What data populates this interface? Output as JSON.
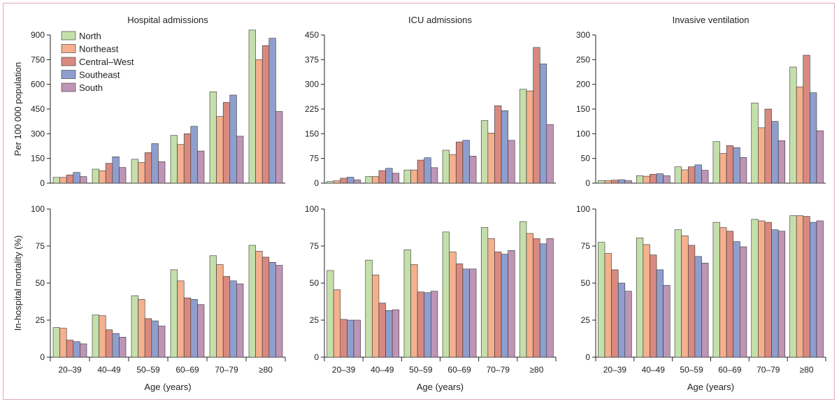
{
  "colors": {
    "North": "#c5dfaa",
    "Northeast": "#f5b08e",
    "Central-West": "#d98a80",
    "Southeast": "#8e9fcf",
    "South": "#bf95b6",
    "border": "#e2a6c4"
  },
  "legend": {
    "items": [
      "North",
      "Northeast",
      "Central–West",
      "Southeast",
      "South"
    ],
    "placement": "top-left"
  },
  "shared": {
    "xlabel": "Age (years)",
    "categories": [
      "20–39",
      "40–49",
      "50–59",
      "60–69",
      "70–79",
      "≥80"
    ]
  },
  "chart_data": [
    {
      "id": "hosp",
      "type": "bar",
      "title": "Hospital admissions",
      "ylabel": "Per 100 000 population",
      "ylim": [
        0,
        900
      ],
      "yticks": [
        0,
        150,
        300,
        450,
        600,
        750,
        900
      ],
      "series": [
        {
          "name": "North",
          "values": [
            35,
            85,
            145,
            290,
            555,
            930
          ]
        },
        {
          "name": "Northeast",
          "values": [
            35,
            75,
            125,
            235,
            405,
            750
          ]
        },
        {
          "name": "Central–West",
          "values": [
            50,
            120,
            185,
            300,
            490,
            835
          ]
        },
        {
          "name": "Southeast",
          "values": [
            65,
            160,
            240,
            345,
            535,
            880
          ]
        },
        {
          "name": "South",
          "values": [
            40,
            95,
            130,
            195,
            285,
            435
          ]
        }
      ]
    },
    {
      "id": "icu",
      "type": "bar",
      "title": "ICU admissions",
      "ylabel": "",
      "ylim": [
        0,
        450
      ],
      "yticks": [
        0,
        75,
        150,
        225,
        300,
        375,
        450
      ],
      "series": [
        {
          "name": "North",
          "values": [
            5,
            20,
            40,
            100,
            190,
            285
          ]
        },
        {
          "name": "Northeast",
          "values": [
            7,
            20,
            40,
            87,
            152,
            280
          ]
        },
        {
          "name": "Central–West",
          "values": [
            15,
            38,
            70,
            125,
            235,
            412
          ]
        },
        {
          "name": "Southeast",
          "values": [
            18,
            45,
            77,
            130,
            220,
            362
          ]
        },
        {
          "name": "South",
          "values": [
            10,
            30,
            47,
            82,
            130,
            178
          ]
        }
      ]
    },
    {
      "id": "vent",
      "type": "bar",
      "title": "Invasive ventilation",
      "ylabel": "",
      "ylim": [
        0,
        300
      ],
      "yticks": [
        0,
        50,
        100,
        150,
        200,
        250,
        300
      ],
      "series": [
        {
          "name": "North",
          "values": [
            5,
            15,
            33,
            84,
            162,
            235
          ]
        },
        {
          "name": "Northeast",
          "values": [
            5,
            14,
            27,
            60,
            112,
            195
          ]
        },
        {
          "name": "Central–West",
          "values": [
            6,
            18,
            33,
            76,
            150,
            259
          ]
        },
        {
          "name": "Southeast",
          "values": [
            7,
            19,
            37,
            72,
            125,
            183
          ]
        },
        {
          "name": "South",
          "values": [
            5,
            15,
            26,
            52,
            86,
            106
          ]
        }
      ]
    },
    {
      "id": "mort1",
      "type": "bar",
      "title": "",
      "ylabel": "In-hospital mortality (%)",
      "ylim": [
        0,
        100
      ],
      "yticks": [
        0,
        25,
        50,
        75,
        100
      ],
      "series": [
        {
          "name": "North",
          "values": [
            20,
            28.5,
            41.5,
            59,
            68.5,
            75.5
          ]
        },
        {
          "name": "Northeast",
          "values": [
            19.5,
            28,
            39,
            51.5,
            62.5,
            71.5
          ]
        },
        {
          "name": "Central–West",
          "values": [
            11.5,
            18.5,
            26,
            40,
            54.5,
            67.5
          ]
        },
        {
          "name": "Southeast",
          "values": [
            10.5,
            16,
            24.5,
            39,
            51.5,
            64
          ]
        },
        {
          "name": "South",
          "values": [
            9,
            13.5,
            21,
            35.5,
            49.5,
            62
          ]
        }
      ]
    },
    {
      "id": "mort2",
      "type": "bar",
      "title": "",
      "ylabel": "",
      "ylim": [
        0,
        100
      ],
      "yticks": [
        0,
        25,
        50,
        75,
        100
      ],
      "series": [
        {
          "name": "North",
          "values": [
            58.5,
            65.5,
            72.5,
            84.5,
            87.5,
            91.5
          ]
        },
        {
          "name": "Northeast",
          "values": [
            45.5,
            55.5,
            62.5,
            71,
            80,
            83.5
          ]
        },
        {
          "name": "Central–West",
          "values": [
            25.5,
            36.5,
            44,
            63,
            71,
            80
          ]
        },
        {
          "name": "Southeast",
          "values": [
            25,
            31.5,
            43.5,
            59.5,
            69.5,
            76.5
          ]
        },
        {
          "name": "South",
          "values": [
            25,
            32,
            44.5,
            59.5,
            72,
            80
          ]
        }
      ]
    },
    {
      "id": "mort3",
      "type": "bar",
      "title": "",
      "ylabel": "",
      "ylim": [
        0,
        100
      ],
      "yticks": [
        0,
        25,
        50,
        75,
        100
      ],
      "series": [
        {
          "name": "North",
          "values": [
            77.5,
            80.5,
            86,
            91,
            93,
            95.5
          ]
        },
        {
          "name": "Northeast",
          "values": [
            70,
            76,
            82,
            87.5,
            92,
            95.5
          ]
        },
        {
          "name": "Central–West",
          "values": [
            59,
            69,
            75.5,
            85,
            91,
            95
          ]
        },
        {
          "name": "Southeast",
          "values": [
            50,
            59,
            68,
            78,
            86,
            91
          ]
        },
        {
          "name": "South",
          "values": [
            44.5,
            48.5,
            63.5,
            74.5,
            85,
            92
          ]
        }
      ]
    }
  ]
}
